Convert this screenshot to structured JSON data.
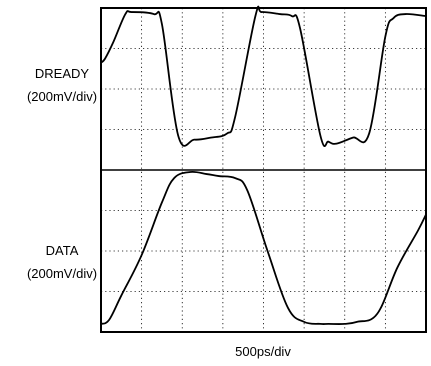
{
  "chart_data": {
    "type": "line",
    "title": "",
    "xlabel": "500ps/div",
    "grid": true,
    "divisions": {
      "x": 8,
      "y": 8
    },
    "x_unit": "div",
    "y_unit": "div",
    "series": [
      {
        "name": "DREADY",
        "scale_label": "(200mV/div)",
        "x": [
          0,
          0.1,
          0.3,
          0.6,
          0.75,
          1.3,
          1.5,
          1.9,
          2.3,
          2.7,
          3.1,
          3.3,
          3.8,
          3.95,
          4.4,
          4.7,
          4.9,
          5.4,
          5.6,
          5.8,
          6.2,
          6.6,
          7.0,
          7.2,
          7.5,
          8.0
        ],
        "y": [
          6.65,
          6.75,
          7.15,
          7.85,
          7.9,
          7.85,
          7.6,
          4.85,
          4.75,
          4.8,
          4.9,
          5.3,
          7.8,
          7.9,
          7.85,
          7.8,
          7.5,
          4.85,
          4.7,
          4.65,
          4.8,
          4.9,
          7.3,
          7.75,
          7.85,
          7.8
        ]
      },
      {
        "name": "DATA",
        "scale_label": "(200mV/div)",
        "x": [
          0,
          0.2,
          0.5,
          1.0,
          1.5,
          1.8,
          2.2,
          2.6,
          2.9,
          3.3,
          3.6,
          4.1,
          4.6,
          5.0,
          5.4,
          5.6,
          6.0,
          6.3,
          6.8,
          7.3,
          7.8,
          8.0
        ],
        "y": [
          0.2,
          0.3,
          0.9,
          1.9,
          3.2,
          3.8,
          3.95,
          3.9,
          3.85,
          3.8,
          3.5,
          2.0,
          0.6,
          0.25,
          0.2,
          0.2,
          0.2,
          0.25,
          0.45,
          1.6,
          2.5,
          2.9
        ]
      }
    ],
    "xlim": [
      0,
      8
    ],
    "ylim": [
      0,
      8
    ]
  }
}
